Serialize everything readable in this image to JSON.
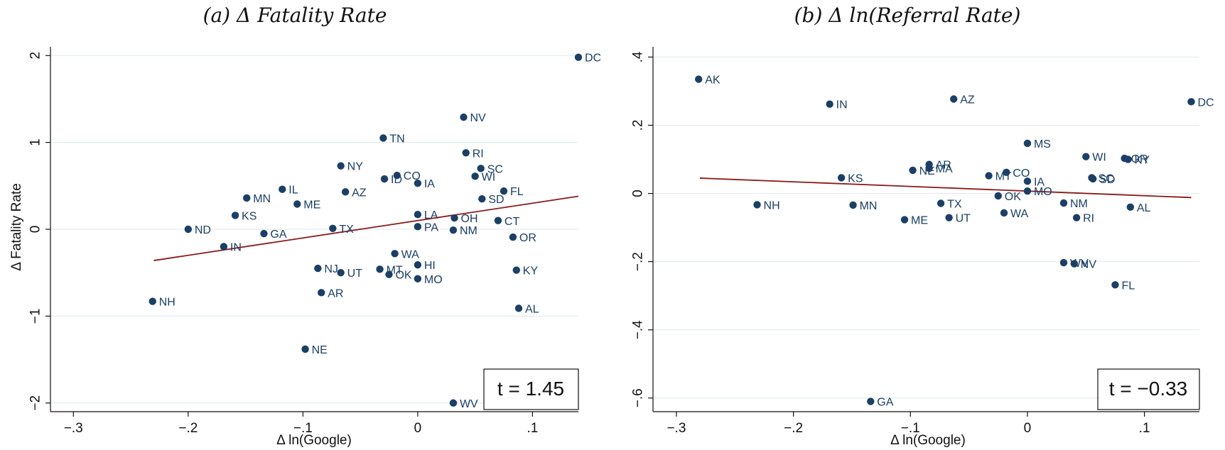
{
  "chart_data": [
    {
      "type": "scatter",
      "title": "(a) Δ Fatality Rate",
      "xlabel": "Δ ln(Google)",
      "ylabel": "Δ Fatality Rate",
      "xlim": [
        -0.32,
        0.14
      ],
      "ylim": [
        -2.1,
        2.1
      ],
      "xticks": [
        -0.3,
        -0.2,
        -0.1,
        0,
        0.1
      ],
      "xticklabels": [
        "−.3",
        "−.2",
        "−.1",
        "0",
        ".1"
      ],
      "yticks": [
        -2,
        -1,
        0,
        1,
        2
      ],
      "yticklabels": [
        "−2",
        "−1",
        "0",
        "1",
        "2"
      ],
      "grid": true,
      "marker_color": "#1b3f66",
      "fit_color": "#8b1a1a",
      "fit_line": {
        "x": [
          -0.23,
          0.14
        ],
        "y": [
          -0.36,
          0.38
        ]
      },
      "stat_label": "t = 1.45",
      "points": [
        {
          "label": "DC",
          "x": 0.14,
          "y": 1.98
        },
        {
          "label": "NV",
          "x": 0.04,
          "y": 1.29
        },
        {
          "label": "TN",
          "x": -0.03,
          "y": 1.05
        },
        {
          "label": "RI",
          "x": 0.042,
          "y": 0.88
        },
        {
          "label": "NY",
          "x": -0.067,
          "y": 0.73
        },
        {
          "label": "SC",
          "x": 0.055,
          "y": 0.7
        },
        {
          "label": "CO",
          "x": -0.018,
          "y": 0.62
        },
        {
          "label": "WI",
          "x": 0.05,
          "y": 0.61
        },
        {
          "label": "ID",
          "x": -0.029,
          "y": 0.58
        },
        {
          "label": "IA",
          "x": 0.0,
          "y": 0.53
        },
        {
          "label": "IL",
          "x": -0.118,
          "y": 0.46
        },
        {
          "label": "FL",
          "x": 0.075,
          "y": 0.44
        },
        {
          "label": "AZ",
          "x": -0.063,
          "y": 0.43
        },
        {
          "label": "MN",
          "x": -0.149,
          "y": 0.36
        },
        {
          "label": "SD",
          "x": 0.056,
          "y": 0.35
        },
        {
          "label": "ME",
          "x": -0.105,
          "y": 0.29
        },
        {
          "label": "LA",
          "x": 0.0,
          "y": 0.17
        },
        {
          "label": "KS",
          "x": -0.159,
          "y": 0.16
        },
        {
          "label": "OH",
          "x": 0.032,
          "y": 0.13
        },
        {
          "label": "CT",
          "x": 0.07,
          "y": 0.1
        },
        {
          "label": "PA",
          "x": 0.0,
          "y": 0.03
        },
        {
          "label": "ND",
          "x": -0.2,
          "y": 0.0
        },
        {
          "label": "TX",
          "x": -0.074,
          "y": 0.01
        },
        {
          "label": "NM",
          "x": 0.031,
          "y": -0.01
        },
        {
          "label": "GA",
          "x": -0.134,
          "y": -0.05
        },
        {
          "label": "OR",
          "x": 0.083,
          "y": -0.09
        },
        {
          "label": "IN",
          "x": -0.169,
          "y": -0.2
        },
        {
          "label": "WA",
          "x": -0.02,
          "y": -0.28
        },
        {
          "label": "HI",
          "x": 0.0,
          "y": -0.41
        },
        {
          "label": "NJ",
          "x": -0.087,
          "y": -0.45
        },
        {
          "label": "MT",
          "x": -0.033,
          "y": -0.46
        },
        {
          "label": "KY",
          "x": 0.086,
          "y": -0.47
        },
        {
          "label": "UT",
          "x": -0.067,
          "y": -0.5
        },
        {
          "label": "OK",
          "x": -0.025,
          "y": -0.52
        },
        {
          "label": "MO",
          "x": 0.0,
          "y": -0.57
        },
        {
          "label": "AR",
          "x": -0.084,
          "y": -0.73
        },
        {
          "label": "NH",
          "x": -0.231,
          "y": -0.83
        },
        {
          "label": "AL",
          "x": 0.088,
          "y": -0.91
        },
        {
          "label": "NE",
          "x": -0.098,
          "y": -1.38
        },
        {
          "label": "WV",
          "x": 0.031,
          "y": -2.0
        }
      ]
    },
    {
      "type": "scatter",
      "title": "(b) Δ ln(Referral Rate)",
      "xlabel": "Δ ln(Google)",
      "ylabel": "",
      "xlim": [
        -0.32,
        0.147
      ],
      "ylim": [
        -0.64,
        0.43
      ],
      "xticks": [
        -0.3,
        -0.2,
        -0.1,
        0,
        0.1
      ],
      "xticklabels": [
        "−.3",
        "−.2",
        "−.1",
        "0",
        ".1"
      ],
      "yticks": [
        -0.6,
        -0.4,
        -0.2,
        0,
        0.2,
        0.4
      ],
      "yticklabels": [
        "−.6",
        "−.4",
        "−.2",
        "0",
        ".2",
        ".4"
      ],
      "grid": true,
      "marker_color": "#1b3f66",
      "fit_color": "#8b1a1a",
      "fit_line": {
        "x": [
          -0.28,
          0.14
        ],
        "y": [
          0.045,
          -0.012
        ]
      },
      "stat_label": "t = −0.33",
      "points": [
        {
          "label": "AK",
          "x": -0.281,
          "y": 0.335
        },
        {
          "label": "AZ",
          "x": -0.063,
          "y": 0.277
        },
        {
          "label": "DC",
          "x": 0.14,
          "y": 0.269
        },
        {
          "label": "IN",
          "x": -0.169,
          "y": 0.262
        },
        {
          "label": "MS",
          "x": 0.0,
          "y": 0.147
        },
        {
          "label": "WI",
          "x": 0.05,
          "y": 0.108
        },
        {
          "label": "OR",
          "x": 0.083,
          "y": 0.103
        },
        {
          "label": "KY",
          "x": 0.086,
          "y": 0.1
        },
        {
          "label": "AR",
          "x": -0.084,
          "y": 0.085
        },
        {
          "label": "MA",
          "x": -0.084,
          "y": 0.074
        },
        {
          "label": "NE",
          "x": -0.098,
          "y": 0.068
        },
        {
          "label": "CO",
          "x": -0.018,
          "y": 0.062
        },
        {
          "label": "MT",
          "x": -0.033,
          "y": 0.052
        },
        {
          "label": "KS",
          "x": -0.159,
          "y": 0.046
        },
        {
          "label": "SC",
          "x": 0.055,
          "y": 0.046
        },
        {
          "label": "SD",
          "x": 0.056,
          "y": 0.043
        },
        {
          "label": "IA",
          "x": 0.0,
          "y": 0.036
        },
        {
          "label": "MO",
          "x": 0.0,
          "y": 0.007
        },
        {
          "label": "OK",
          "x": -0.025,
          "y": -0.007
        },
        {
          "label": "NM",
          "x": 0.031,
          "y": -0.028
        },
        {
          "label": "TX",
          "x": -0.074,
          "y": -0.029
        },
        {
          "label": "NH",
          "x": -0.231,
          "y": -0.033
        },
        {
          "label": "MN",
          "x": -0.149,
          "y": -0.034
        },
        {
          "label": "AL",
          "x": 0.088,
          "y": -0.04
        },
        {
          "label": "WA",
          "x": -0.02,
          "y": -0.057
        },
        {
          "label": "UT",
          "x": -0.067,
          "y": -0.071
        },
        {
          "label": "RI",
          "x": 0.042,
          "y": -0.071
        },
        {
          "label": "ME",
          "x": -0.105,
          "y": -0.077
        },
        {
          "label": "WV",
          "x": 0.031,
          "y": -0.203
        },
        {
          "label": "NV",
          "x": 0.04,
          "y": -0.206
        },
        {
          "label": "FL",
          "x": 0.075,
          "y": -0.268
        },
        {
          "label": "GA",
          "x": -0.134,
          "y": -0.61
        }
      ]
    }
  ]
}
